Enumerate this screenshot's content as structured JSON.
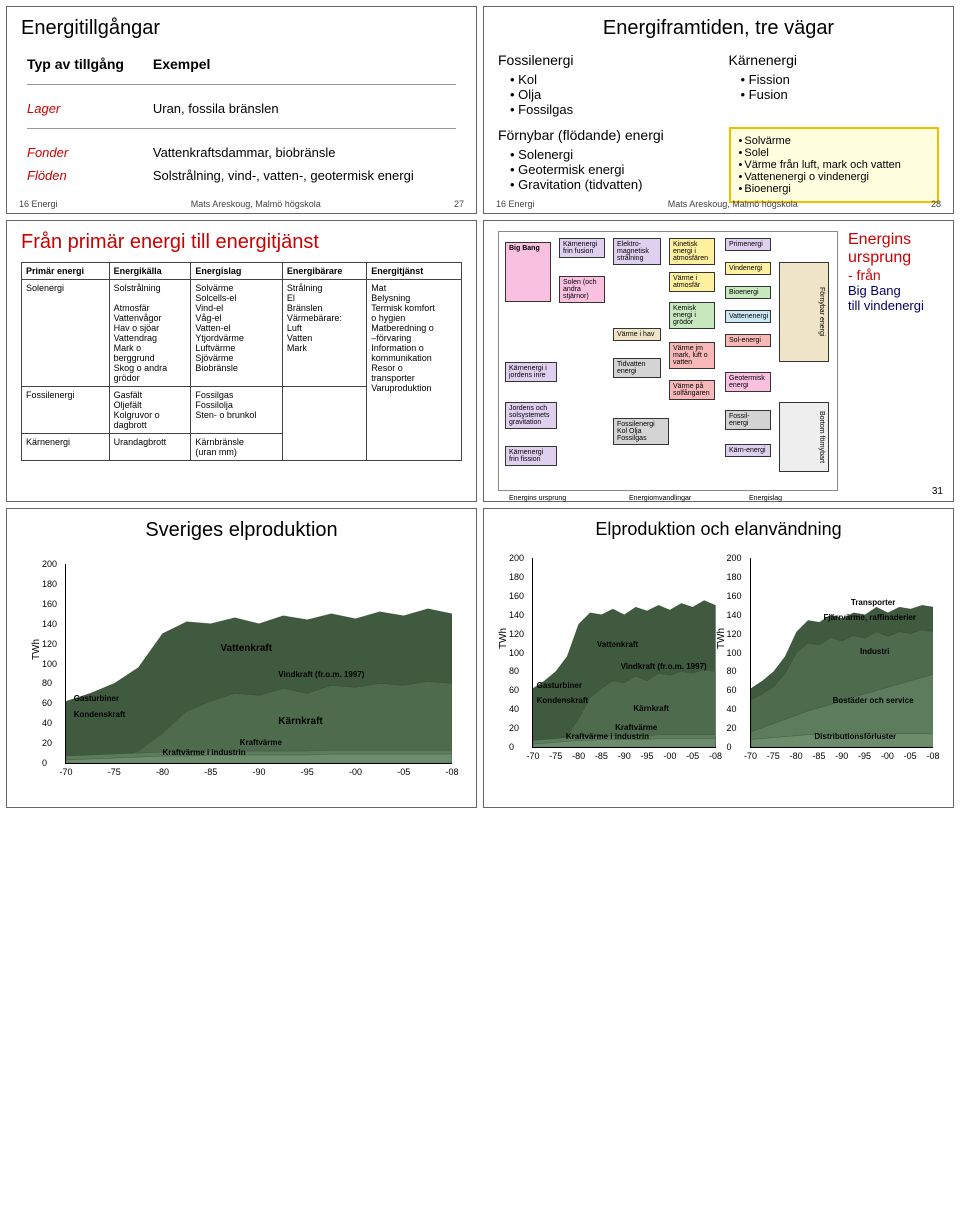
{
  "slide1": {
    "title": "Energitillgångar",
    "th1": "Typ av tillgång",
    "th2": "Exempel",
    "rows": [
      {
        "a": "Lager",
        "b": "Uran, fossila bränslen"
      },
      {
        "a": "Fonder",
        "b": "Vattenkraftsdammar, biobränsle"
      },
      {
        "a": "Flöden",
        "b": "Solstrålning, vind-, vatten-, geotermisk energi"
      }
    ],
    "footer_l": "16 Energi",
    "footer_c": "Mats Areskoug, Malmö högskola",
    "footer_r": "27"
  },
  "slide2": {
    "title": "Energiframtiden, tre vägar",
    "col1": {
      "h": "Fossilenergi",
      "items": [
        "Kol",
        "Olja",
        "Fossilgas"
      ]
    },
    "col2": {
      "h": "Kärnenergi",
      "items": [
        "Fission",
        "Fusion"
      ]
    },
    "col3": {
      "h": "Förnybar (flödande) energi",
      "items": [
        "Solenergi",
        "Geotermisk energi",
        "Gravitation (tidvatten)"
      ]
    },
    "box": [
      "Solvärme",
      "Solel",
      "Värme från luft, mark och vatten",
      "Vattenenergi o vindenergi",
      "Bioenergi"
    ],
    "footer_l": "16 Energi",
    "footer_c": "Mats Areskoug, Malmö högskola",
    "footer_r": "28"
  },
  "slide3": {
    "title": "Från primär energi till energitjänst",
    "headers": [
      "Primär energi",
      "Energikälla",
      "Energislag",
      "Energibärare",
      "Energitjänst"
    ],
    "rows": [
      [
        "Solenergi",
        "Solstrålning\n\nAtmosfär\nVattenvågor\nHav o sjöar\nVattendrag\nMark o\n  berggrund\nSkog o andra\n  grödor",
        "Solvärme\nSolcells-el\nVind-el\nVåg-el\nVatten-el\nYtjordvärme\nLuftvärme\nSjövärme\nBiobränsle",
        "Strålning\nEl\nBränslen\nVärmebärare:\n  Luft\n  Vatten\n  Mark",
        "Mat\nBelysning\nTermisk komfort\n  o hygien\nMatberedning o\n  –förvaring\nInformation o\n  kommunikation\nResor o\n  transporter\nVaruproduktion"
      ],
      [
        "Fossilenergi",
        "Gasfält\nOljefält\nKolgruvor o\n  dagbrott",
        "Fossilgas\nFossilolja\nSten- o brunkol",
        "",
        ""
      ],
      [
        "Kärnenergi",
        "Urandagbrott",
        "Kärnbränsle\n(uran mm)",
        "",
        ""
      ]
    ]
  },
  "slide4": {
    "rt1": "Energins",
    "rt2": "ursprung",
    "rt3": "- från",
    "rt4": "Big Bang",
    "rt5": "till vindenergi",
    "page": "31",
    "col_labels": [
      "Energins ursprung",
      "Energiomvandlingar",
      "Energislag"
    ],
    "boxes": {
      "bigbang": "Big Bang",
      "karn_fus": "Kärnenergi frin fusion",
      "solen": "Solen (och andra stjärnor)",
      "karn_jord": "Kärnenergi i jordens inre",
      "jord_grav": "Jordens och solsystemets gravitation",
      "karn_fis": "Kärnenergi frin fission",
      "elmag": "Elektro-magnetisk strålning",
      "kin_atm": "Kinetisk energi i atmosfären",
      "varme_atm": "Värme i atmosfär",
      "kemisk": "Kemisk energi i grödor",
      "varme_hav": "Värme i hav",
      "tidvatten": "Tidvatten energi",
      "varme_mlv": "Värme jm mark, luft o vatten",
      "varme_sol": "Värme på solfångaren",
      "prim": "Primenergi",
      "vind": "Vindenergi",
      "bio": "Bioenergi",
      "vatten": "Vattenenergi",
      "sol": "Sol-energi",
      "fornyb": "Förnybar energi",
      "geoterm": "Geotermisk energi",
      "fossil": "Fossil-energi",
      "karnene": "Kärn-energi",
      "fossil2": "Fossilenergi Kol Olja Fossilgas",
      "bortom": "Bortom förnybart"
    }
  },
  "slide5": {
    "title": "Sveriges elproduktion",
    "chart": {
      "ylabel": "TWh",
      "ylim": [
        0,
        200
      ],
      "yticks": [
        0,
        20,
        40,
        60,
        80,
        100,
        120,
        140,
        160,
        180,
        200
      ],
      "xlabels": [
        "-70",
        "-75",
        "-80",
        "-85",
        "-90",
        "-95",
        "-00",
        "-05",
        "-08"
      ],
      "colors": {
        "bg": "#ffffff",
        "fill": "#88a878",
        "top": "#3a5a3a"
      },
      "series_labels": [
        "Vattenkraft",
        "Vindkraft (fr.o.m. 1997)",
        "Kraftvärme",
        "Kraftvärme i industrin",
        "Kärnkraft",
        "Kondenskraft",
        "Gasturbiner"
      ],
      "top_heights": [
        62,
        70,
        80,
        96,
        130,
        142,
        140,
        146,
        140,
        148,
        144,
        150,
        145,
        152,
        148,
        155,
        150
      ],
      "nuclear_top": [
        0,
        2,
        4,
        12,
        30,
        52,
        62,
        70,
        68,
        75,
        70,
        78,
        76,
        80,
        78,
        82,
        80
      ],
      "kvind_top": [
        7,
        8,
        9,
        10,
        11,
        11,
        12,
        12,
        12,
        12,
        12,
        13,
        13,
        13,
        13,
        13,
        13
      ],
      "kv_top": [
        3,
        4,
        5,
        6,
        7,
        7,
        8,
        8,
        8,
        8,
        8,
        9,
        9,
        9,
        9,
        9,
        9
      ]
    }
  },
  "slide6": {
    "title": "Elproduktion och elanvändning",
    "chart": {
      "ylabel": "TWh",
      "ylim": [
        0,
        200
      ],
      "yticks": [
        0,
        20,
        40,
        60,
        80,
        100,
        120,
        140,
        160,
        180,
        200
      ],
      "xlabels": [
        "-70",
        "-75",
        "-80",
        "-85",
        "-90",
        "-95",
        "-00",
        "-05",
        "-08"
      ],
      "colors": {
        "fill": "#88a878"
      },
      "left_labels": [
        "Vattenkraft",
        "Vindkraft (fr.o.m. 1997)",
        "Kraftvärme",
        "Kärnkraft",
        "Kraftvärme i industrin",
        "Kondenskraft",
        "Gasturbiner"
      ],
      "right_labels": [
        "Transporter",
        "Fjärrvärme, raffinaderier",
        "Industri",
        "Bostäder och service",
        "Distributionsförluster"
      ],
      "top_heights": [
        62,
        70,
        80,
        96,
        130,
        142,
        140,
        146,
        140,
        148,
        144,
        150,
        145,
        152,
        148,
        155,
        150
      ],
      "r_top": [
        62,
        70,
        80,
        96,
        122,
        134,
        132,
        140,
        136,
        142,
        140,
        148,
        142,
        148,
        146,
        150,
        148
      ],
      "r_bos_top": [
        50,
        56,
        64,
        78,
        100,
        110,
        108,
        116,
        112,
        118,
        115,
        122,
        117,
        122,
        120,
        124,
        122
      ],
      "r_dist": [
        8,
        9,
        10,
        11,
        12,
        13,
        13,
        13,
        13,
        14,
        14,
        14,
        14,
        14,
        14,
        14,
        14
      ]
    }
  }
}
